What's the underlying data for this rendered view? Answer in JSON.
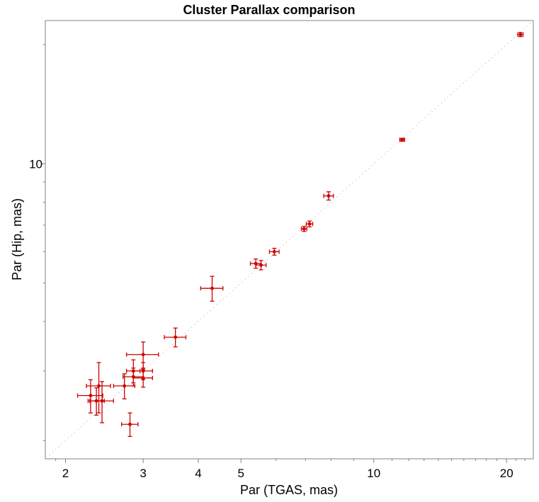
{
  "chart_data": {
    "type": "scatter",
    "title": "Cluster Parallax comparison",
    "xlabel": "Par (TGAS, mas)",
    "ylabel": "Par (Hip, mas)",
    "xscale": "log",
    "yscale": "log",
    "xlim": [
      1.8,
      23
    ],
    "ylim": [
      1.8,
      23
    ],
    "x_ticks": [
      2,
      3,
      4,
      5,
      10,
      20
    ],
    "x_tick_labels": [
      "2",
      "3",
      "4",
      "5",
      "10",
      "20"
    ],
    "y_ticks": [
      10
    ],
    "y_tick_labels": [
      "10"
    ],
    "marker_color": "#cc0000",
    "reference_line": {
      "style": "dotted",
      "color": "#b0b0b0",
      "relation": "y = x"
    },
    "grid": false,
    "points": [
      {
        "x": 21.5,
        "y": 21.2,
        "xerr": 0.3,
        "yerr": 0.25
      },
      {
        "x": 11.6,
        "y": 11.5,
        "xerr": 0.15,
        "yerr": 0.1
      },
      {
        "x": 7.9,
        "y": 8.3,
        "xerr": 0.2,
        "yerr": 0.2
      },
      {
        "x": 7.15,
        "y": 7.05,
        "xerr": 0.12,
        "yerr": 0.12
      },
      {
        "x": 6.95,
        "y": 6.85,
        "xerr": 0.1,
        "yerr": 0.1
      },
      {
        "x": 5.95,
        "y": 6.0,
        "xerr": 0.15,
        "yerr": 0.12
      },
      {
        "x": 5.55,
        "y": 5.55,
        "xerr": 0.15,
        "yerr": 0.15
      },
      {
        "x": 5.4,
        "y": 5.6,
        "xerr": 0.15,
        "yerr": 0.15
      },
      {
        "x": 4.3,
        "y": 4.85,
        "xerr": 0.25,
        "yerr": 0.35
      },
      {
        "x": 3.55,
        "y": 3.65,
        "xerr": 0.2,
        "yerr": 0.2
      },
      {
        "x": 3.0,
        "y": 3.3,
        "xerr": 0.25,
        "yerr": 0.25
      },
      {
        "x": 2.85,
        "y": 3.0,
        "xerr": 0.1,
        "yerr": 0.2
      },
      {
        "x": 3.0,
        "y": 3.0,
        "xerr": 0.15,
        "yerr": 0.15
      },
      {
        "x": 2.85,
        "y": 2.9,
        "xerr": 0.15,
        "yerr": 0.15
      },
      {
        "x": 3.0,
        "y": 2.88,
        "xerr": 0.15,
        "yerr": 0.15
      },
      {
        "x": 2.72,
        "y": 2.75,
        "xerr": 0.15,
        "yerr": 0.2
      },
      {
        "x": 2.38,
        "y": 2.75,
        "xerr": 0.15,
        "yerr": 0.4
      },
      {
        "x": 2.28,
        "y": 2.6,
        "xerr": 0.15,
        "yerr": 0.25
      },
      {
        "x": 2.35,
        "y": 2.52,
        "xerr": 0.1,
        "yerr": 0.2
      },
      {
        "x": 2.42,
        "y": 2.52,
        "xerr": 0.15,
        "yerr": 0.3
      },
      {
        "x": 2.8,
        "y": 2.2,
        "xerr": 0.12,
        "yerr": 0.15
      }
    ]
  }
}
